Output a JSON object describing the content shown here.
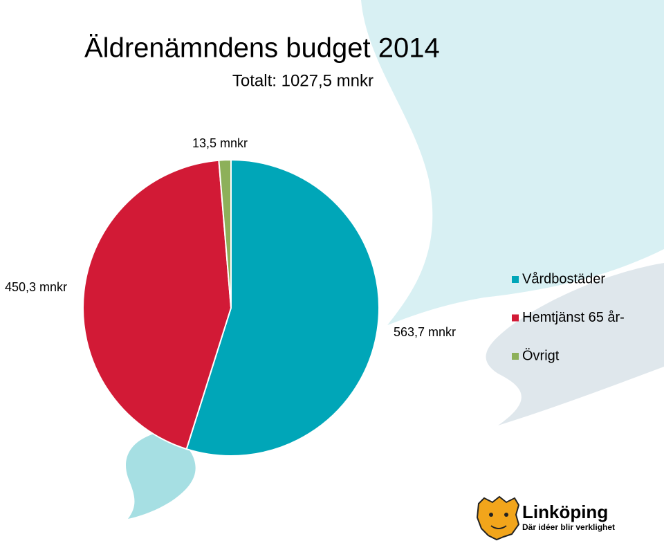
{
  "chart_data": {
    "type": "pie",
    "title": "Äldrenämndens budget 2014",
    "subtitle": "Totalt: 1027,5 mnkr",
    "categories": [
      "Vårdbostäder",
      "Hemtjänst 65 år-",
      "Övrigt"
    ],
    "series": [
      {
        "values": [
          563.7,
          450.3,
          13.5
        ],
        "value_labels": [
          "563,7 mnkr",
          "450,3 mnkr",
          "13,5 mnkr"
        ],
        "colors": [
          "#00a6b8",
          "#d21a36",
          "#8db05a"
        ]
      }
    ],
    "legend": "right"
  },
  "logo": {
    "name": "Linköping",
    "tagline": "Där idéer blir verklighet"
  }
}
